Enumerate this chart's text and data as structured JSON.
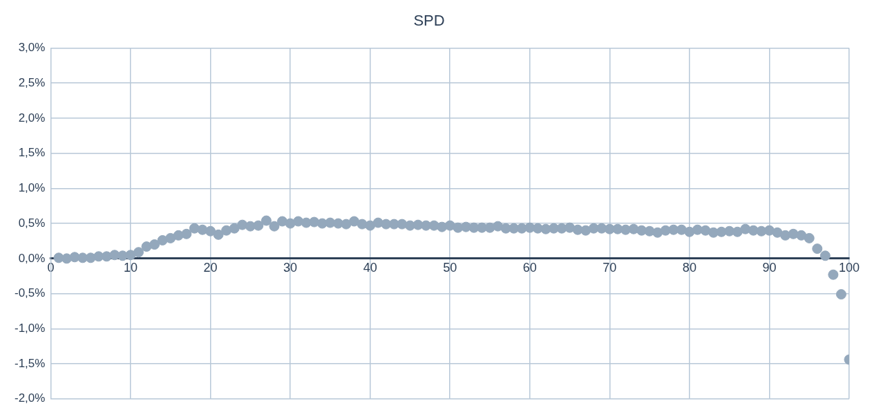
{
  "chart_data": {
    "type": "scatter",
    "title": "SPD",
    "x": [
      1,
      2,
      3,
      4,
      5,
      6,
      7,
      8,
      9,
      10,
      11,
      12,
      13,
      14,
      15,
      16,
      17,
      18,
      19,
      20,
      21,
      22,
      23,
      24,
      25,
      26,
      27,
      28,
      29,
      30,
      31,
      32,
      33,
      34,
      35,
      36,
      37,
      38,
      39,
      40,
      41,
      42,
      43,
      44,
      45,
      46,
      47,
      48,
      49,
      50,
      51,
      52,
      53,
      54,
      55,
      56,
      57,
      58,
      59,
      60,
      61,
      62,
      63,
      64,
      65,
      66,
      67,
      68,
      69,
      70,
      71,
      72,
      73,
      74,
      75,
      76,
      77,
      78,
      79,
      80,
      81,
      82,
      83,
      84,
      85,
      86,
      87,
      88,
      89,
      90,
      91,
      92,
      93,
      94,
      95,
      96,
      97,
      98,
      99,
      100
    ],
    "series": [
      {
        "color": "#94a8bc",
        "values": [
          0.01,
          0.0,
          0.02,
          0.01,
          0.01,
          0.03,
          0.03,
          0.05,
          0.04,
          0.05,
          0.09,
          0.17,
          0.2,
          0.26,
          0.29,
          0.33,
          0.35,
          0.43,
          0.41,
          0.39,
          0.34,
          0.4,
          0.43,
          0.48,
          0.46,
          0.47,
          0.54,
          0.46,
          0.53,
          0.5,
          0.53,
          0.51,
          0.52,
          0.5,
          0.51,
          0.5,
          0.49,
          0.53,
          0.49,
          0.47,
          0.51,
          0.49,
          0.49,
          0.49,
          0.47,
          0.48,
          0.47,
          0.47,
          0.45,
          0.47,
          0.44,
          0.45,
          0.44,
          0.44,
          0.44,
          0.46,
          0.43,
          0.43,
          0.43,
          0.44,
          0.43,
          0.42,
          0.43,
          0.43,
          0.44,
          0.41,
          0.4,
          0.43,
          0.43,
          0.42,
          0.42,
          0.41,
          0.42,
          0.4,
          0.39,
          0.37,
          0.4,
          0.41,
          0.41,
          0.38,
          0.41,
          0.4,
          0.37,
          0.38,
          0.39,
          0.38,
          0.42,
          0.4,
          0.39,
          0.4,
          0.37,
          0.33,
          0.35,
          0.33,
          0.29,
          0.14,
          0.04,
          -0.23,
          -0.51,
          -1.44
        ]
      }
    ],
    "xlim": [
      0,
      100
    ],
    "xticks": [
      0,
      10,
      20,
      30,
      40,
      50,
      60,
      70,
      80,
      90,
      100
    ],
    "ylim": [
      -2.0,
      3.0
    ],
    "yticks": [
      {
        "value": -2.0,
        "label": "-2,0%"
      },
      {
        "value": -1.5,
        "label": "-1,5%"
      },
      {
        "value": -1.0,
        "label": "-1,0%"
      },
      {
        "value": -0.5,
        "label": "-0,5%"
      },
      {
        "value": 0,
        "label": "0,0%"
      },
      {
        "value": 0.5,
        "label": "0,5%"
      },
      {
        "value": 1.0,
        "label": "1,0%"
      },
      {
        "value": 1.5,
        "label": "1,5%"
      },
      {
        "value": 2.0,
        "label": "2,0%"
      },
      {
        "value": 2.5,
        "label": "2,5%"
      },
      {
        "value": 3.0,
        "label": "3,0%"
      }
    ],
    "grid": true,
    "legend": false,
    "marker": "circle"
  }
}
